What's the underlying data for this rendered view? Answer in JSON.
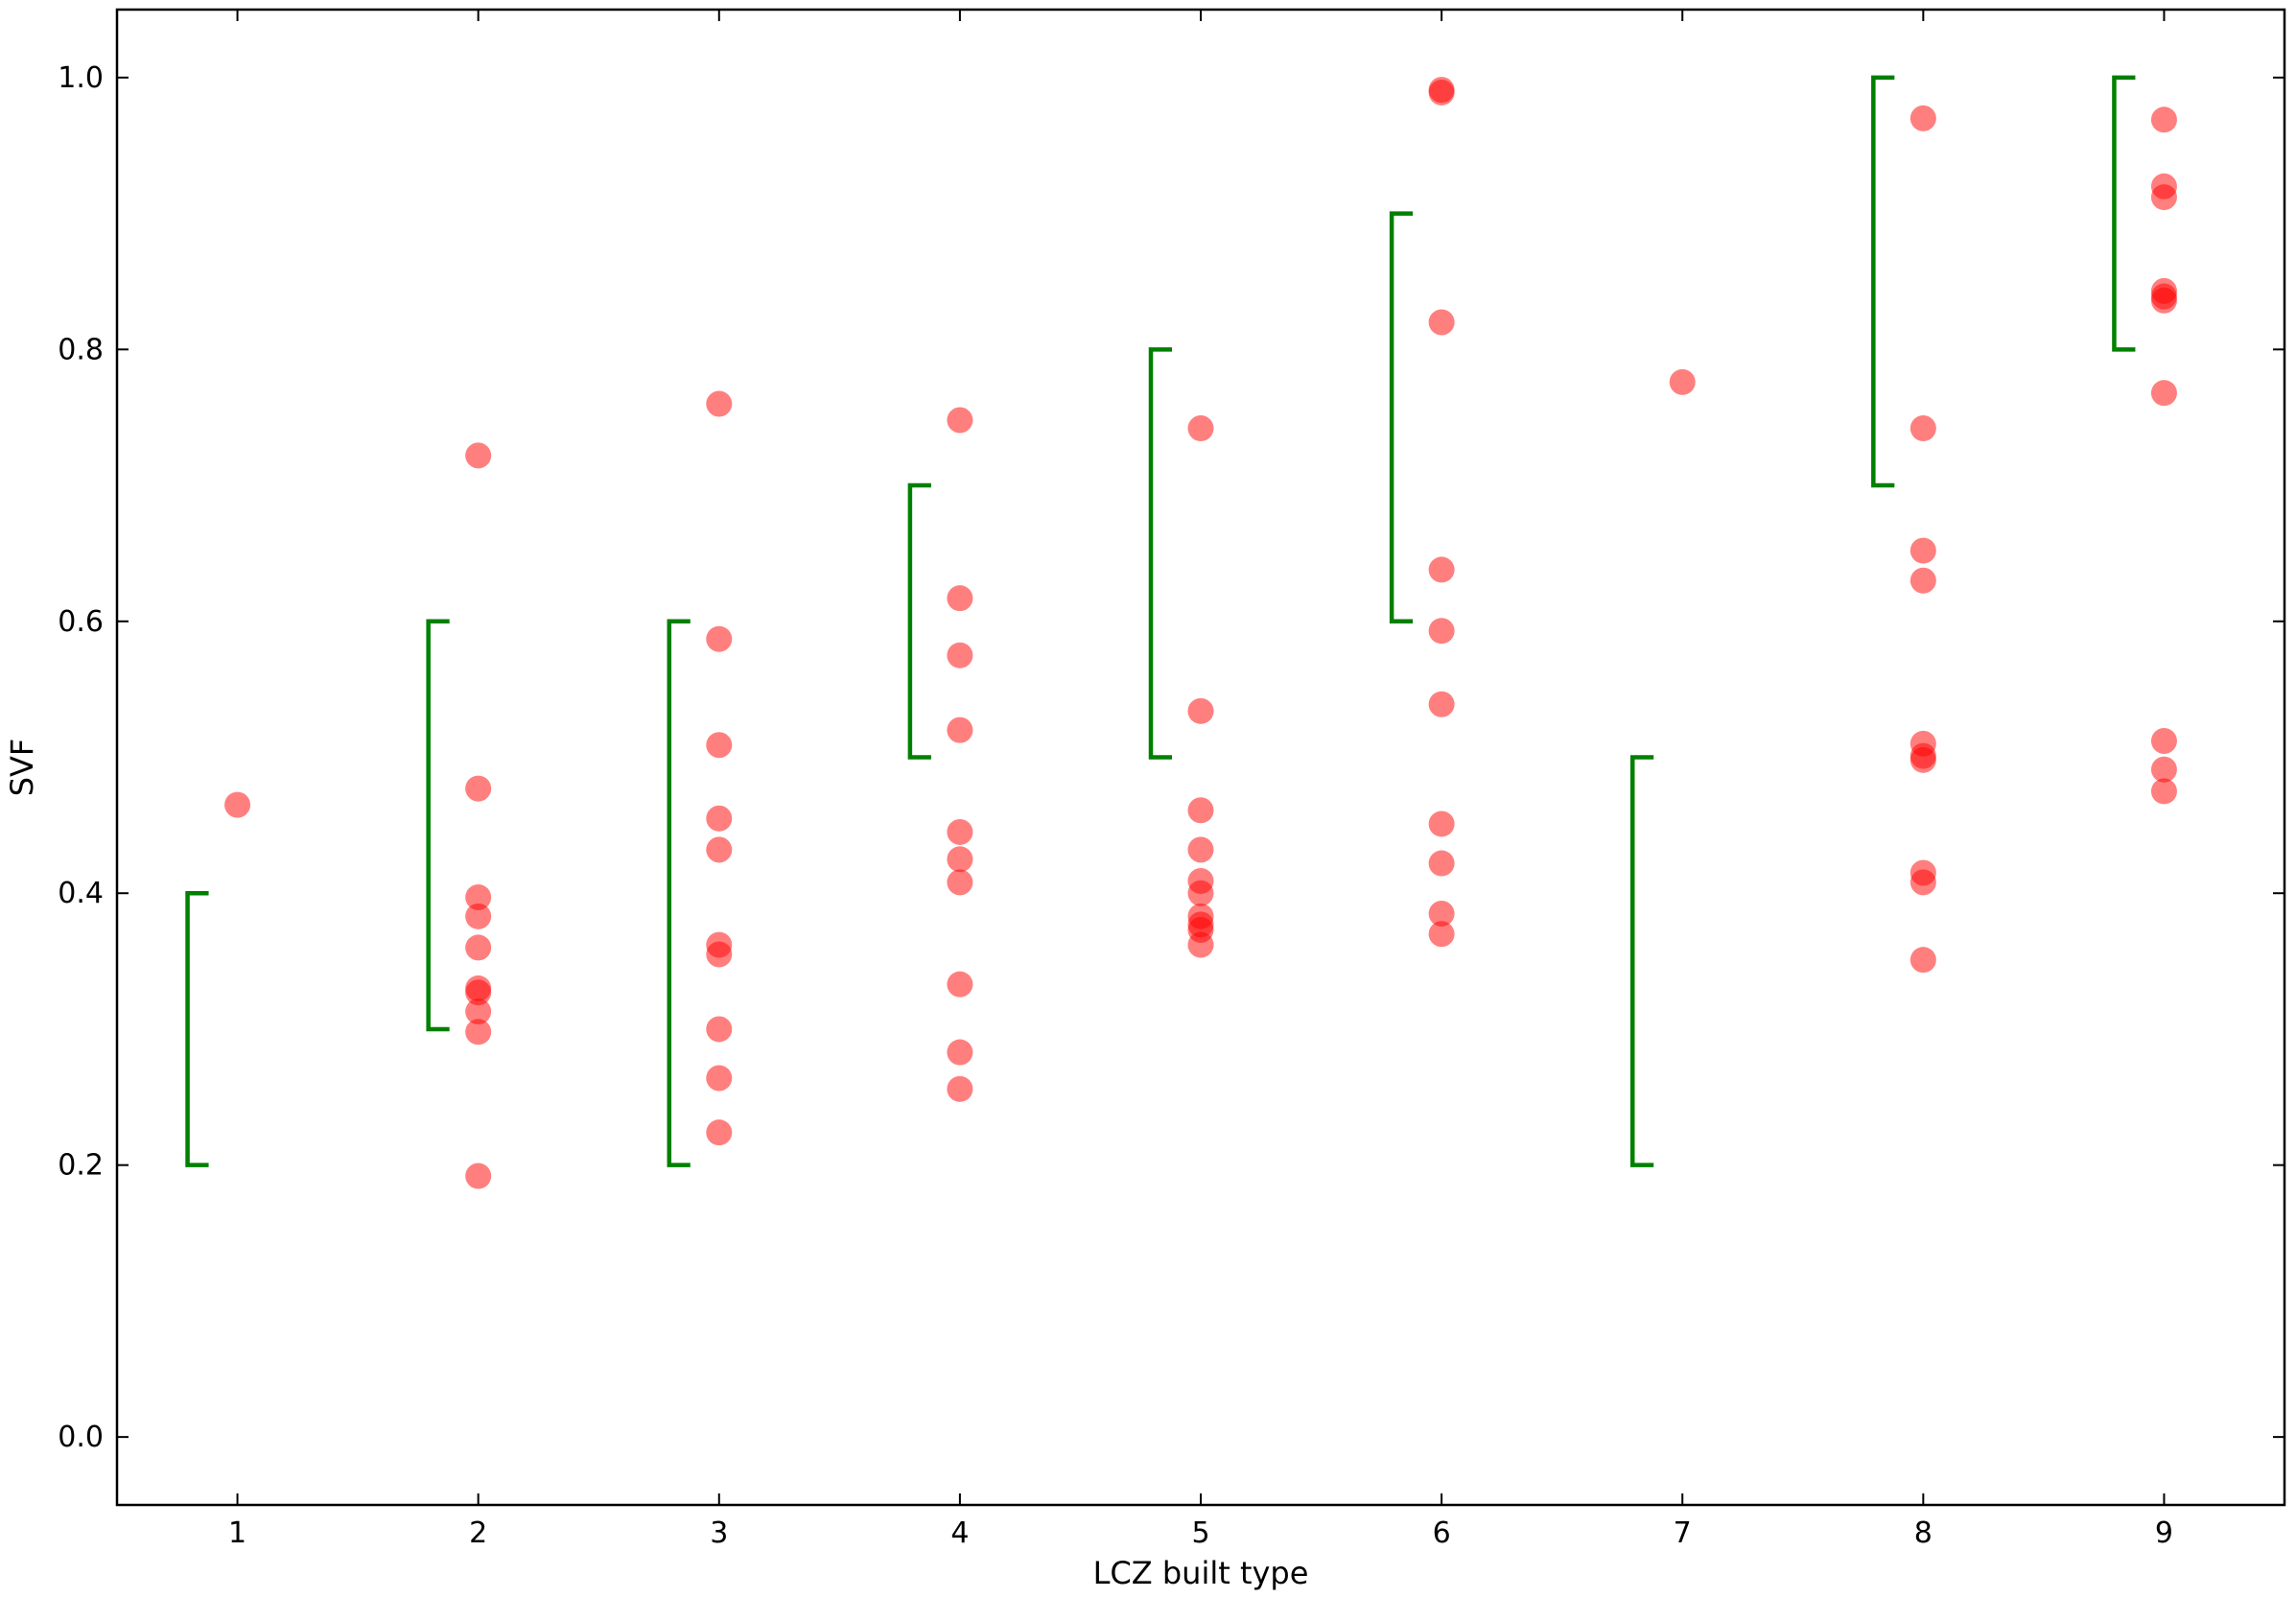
{
  "chart_data": {
    "type": "scatter",
    "title": "",
    "xlabel": "LCZ built type",
    "ylabel": "SVF",
    "xlim": [
      0.5,
      9.5
    ],
    "ylim": [
      -0.05,
      1.05
    ],
    "x_ticks": [
      1,
      2,
      3,
      4,
      5,
      6,
      7,
      8,
      9
    ],
    "x_tick_labels": [
      "1",
      "2",
      "3",
      "4",
      "5",
      "6",
      "7",
      "8",
      "9"
    ],
    "y_ticks": [
      0.0,
      0.2,
      0.4,
      0.6,
      0.8,
      1.0
    ],
    "y_tick_labels": [
      "0.0",
      "0.2",
      "0.4",
      "0.6",
      "0.8",
      "1.0"
    ],
    "grid": false,
    "legend": "none",
    "series": [
      {
        "marker": "circle",
        "color": "#ff0000",
        "opacity": 0.5,
        "points": [
          {
            "x": 1,
            "y": 0.465
          },
          {
            "x": 2,
            "y": 0.722
          },
          {
            "x": 2,
            "y": 0.477
          },
          {
            "x": 2,
            "y": 0.397
          },
          {
            "x": 2,
            "y": 0.383
          },
          {
            "x": 2,
            "y": 0.36
          },
          {
            "x": 2,
            "y": 0.33
          },
          {
            "x": 2,
            "y": 0.327
          },
          {
            "x": 2,
            "y": 0.313
          },
          {
            "x": 2,
            "y": 0.298
          },
          {
            "x": 2,
            "y": 0.192
          },
          {
            "x": 3,
            "y": 0.76
          },
          {
            "x": 3,
            "y": 0.587
          },
          {
            "x": 3,
            "y": 0.509
          },
          {
            "x": 3,
            "y": 0.455
          },
          {
            "x": 3,
            "y": 0.432
          },
          {
            "x": 3,
            "y": 0.362
          },
          {
            "x": 3,
            "y": 0.355
          },
          {
            "x": 3,
            "y": 0.3
          },
          {
            "x": 3,
            "y": 0.264
          },
          {
            "x": 3,
            "y": 0.224
          },
          {
            "x": 4,
            "y": 0.748
          },
          {
            "x": 4,
            "y": 0.617
          },
          {
            "x": 4,
            "y": 0.575
          },
          {
            "x": 4,
            "y": 0.52
          },
          {
            "x": 4,
            "y": 0.445
          },
          {
            "x": 4,
            "y": 0.425
          },
          {
            "x": 4,
            "y": 0.408
          },
          {
            "x": 4,
            "y": 0.333
          },
          {
            "x": 4,
            "y": 0.283
          },
          {
            "x": 4,
            "y": 0.256
          },
          {
            "x": 5,
            "y": 0.742
          },
          {
            "x": 5,
            "y": 0.534
          },
          {
            "x": 5,
            "y": 0.461
          },
          {
            "x": 5,
            "y": 0.432
          },
          {
            "x": 5,
            "y": 0.409
          },
          {
            "x": 5,
            "y": 0.4
          },
          {
            "x": 5,
            "y": 0.383
          },
          {
            "x": 5,
            "y": 0.377
          },
          {
            "x": 5,
            "y": 0.373
          },
          {
            "x": 5,
            "y": 0.362
          },
          {
            "x": 6,
            "y": 0.991
          },
          {
            "x": 6,
            "y": 0.989
          },
          {
            "x": 6,
            "y": 0.82
          },
          {
            "x": 6,
            "y": 0.638
          },
          {
            "x": 6,
            "y": 0.593
          },
          {
            "x": 6,
            "y": 0.539
          },
          {
            "x": 6,
            "y": 0.451
          },
          {
            "x": 6,
            "y": 0.422
          },
          {
            "x": 6,
            "y": 0.385
          },
          {
            "x": 6,
            "y": 0.37
          },
          {
            "x": 7,
            "y": 0.776
          },
          {
            "x": 8,
            "y": 0.97
          },
          {
            "x": 8,
            "y": 0.742
          },
          {
            "x": 8,
            "y": 0.652
          },
          {
            "x": 8,
            "y": 0.63
          },
          {
            "x": 8,
            "y": 0.51
          },
          {
            "x": 8,
            "y": 0.501
          },
          {
            "x": 8,
            "y": 0.498
          },
          {
            "x": 8,
            "y": 0.415
          },
          {
            "x": 8,
            "y": 0.408
          },
          {
            "x": 8,
            "y": 0.351
          },
          {
            "x": 9,
            "y": 0.969
          },
          {
            "x": 9,
            "y": 0.92
          },
          {
            "x": 9,
            "y": 0.912
          },
          {
            "x": 9,
            "y": 0.843
          },
          {
            "x": 9,
            "y": 0.839
          },
          {
            "x": 9,
            "y": 0.836
          },
          {
            "x": 9,
            "y": 0.768
          },
          {
            "x": 9,
            "y": 0.512
          },
          {
            "x": 9,
            "y": 0.491
          },
          {
            "x": 9,
            "y": 0.475
          }
        ]
      }
    ],
    "ranges": {
      "color": "#008000",
      "marker": "bracket",
      "items": [
        {
          "x": 1,
          "low": 0.2,
          "high": 0.4
        },
        {
          "x": 2,
          "low": 0.3,
          "high": 0.6
        },
        {
          "x": 3,
          "low": 0.2,
          "high": 0.6
        },
        {
          "x": 4,
          "low": 0.5,
          "high": 0.7
        },
        {
          "x": 5,
          "low": 0.5,
          "high": 0.8
        },
        {
          "x": 6,
          "low": 0.6,
          "high": 0.9
        },
        {
          "x": 7,
          "low": 0.2,
          "high": 0.5
        },
        {
          "x": 8,
          "low": 0.7,
          "high": 1.0
        },
        {
          "x": 9,
          "low": 0.8,
          "high": 1.0
        }
      ]
    }
  }
}
